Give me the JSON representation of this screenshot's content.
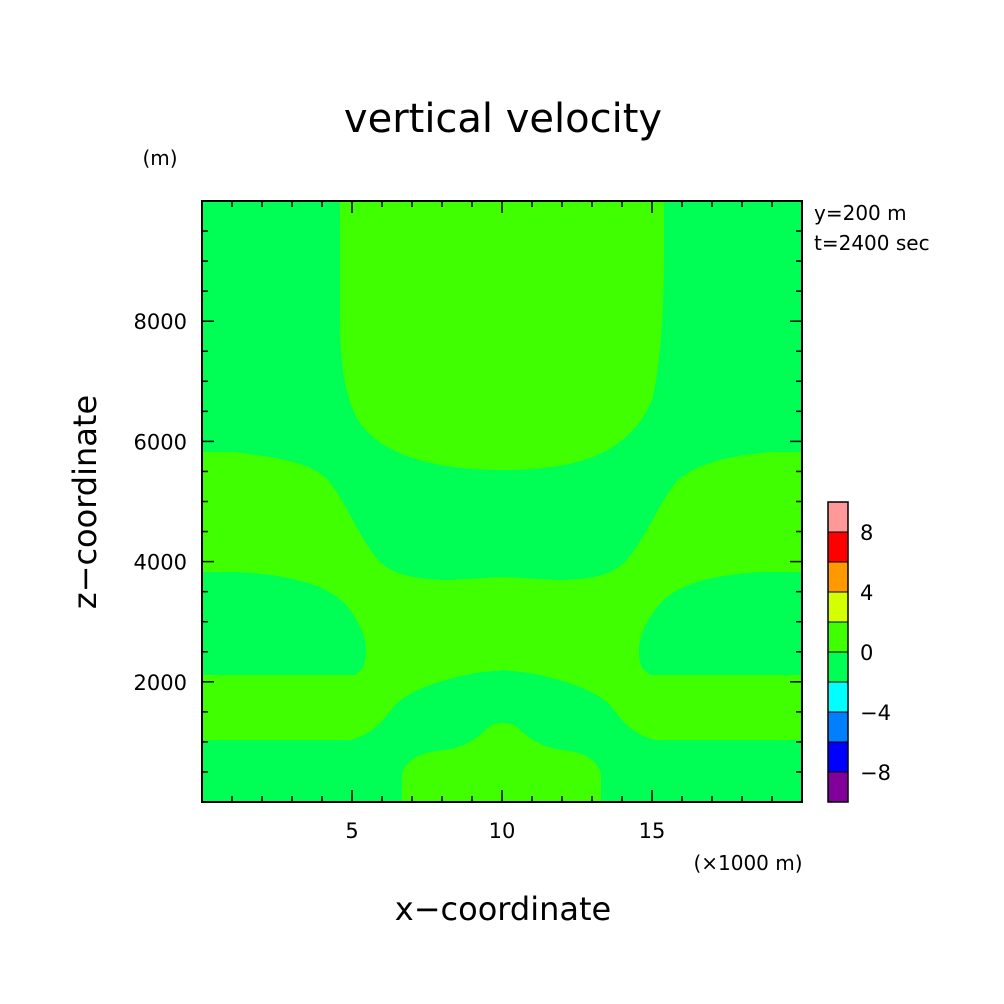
{
  "chart_data": {
    "type": "contour",
    "title": "vertical velocity",
    "xlabel": "x−coordinate",
    "ylabel": "z−coordinate",
    "x_unit": "(×1000 m)",
    "y_unit": "(m)",
    "annotations": [
      "y=200 m",
      "t=2400 sec"
    ],
    "xlim": [
      0,
      20
    ],
    "ylim": [
      0,
      10000
    ],
    "x_ticks": [
      5,
      10,
      15
    ],
    "x_tick_labels": [
      "5",
      "10",
      "15"
    ],
    "y_ticks": [
      2000,
      4000,
      6000,
      8000
    ],
    "y_tick_labels": [
      "2000",
      "4000",
      "6000",
      "8000"
    ],
    "background_level": "0 to -2",
    "regions": [
      {
        "name": "upper-central-updraft",
        "level": "0 to 2",
        "x_range": [
          4.6,
          15.4
        ],
        "z_range": [
          5500,
          10000
        ]
      },
      {
        "name": "mid-level-band",
        "level": "0 to 2",
        "x_range": [
          0,
          20
        ],
        "z_range": [
          2200,
          5800
        ]
      },
      {
        "name": "low-level-band",
        "level": "0 to 2",
        "x_range": [
          0,
          20
        ],
        "z_range": [
          1000,
          2200
        ]
      },
      {
        "name": "surface-central-lobe",
        "level": "0 to 2",
        "x_range": [
          6.7,
          13.3
        ],
        "z_range": [
          0,
          1300
        ]
      }
    ],
    "colorbar": {
      "levels": [
        -10,
        -8,
        -6,
        -4,
        -2,
        0,
        2,
        4,
        6,
        8,
        10
      ],
      "tick_labels": [
        "−8",
        "−4",
        "0",
        "4",
        "8"
      ],
      "tick_values": [
        -8,
        -4,
        0,
        4,
        8
      ],
      "colors": [
        "#800099",
        "#0000ff",
        "#0080ff",
        "#00ffff",
        "#00ff55",
        "#40ff00",
        "#d4ff00",
        "#ff9900",
        "#ff0000",
        "#ff9999"
      ]
    },
    "grid": false
  }
}
